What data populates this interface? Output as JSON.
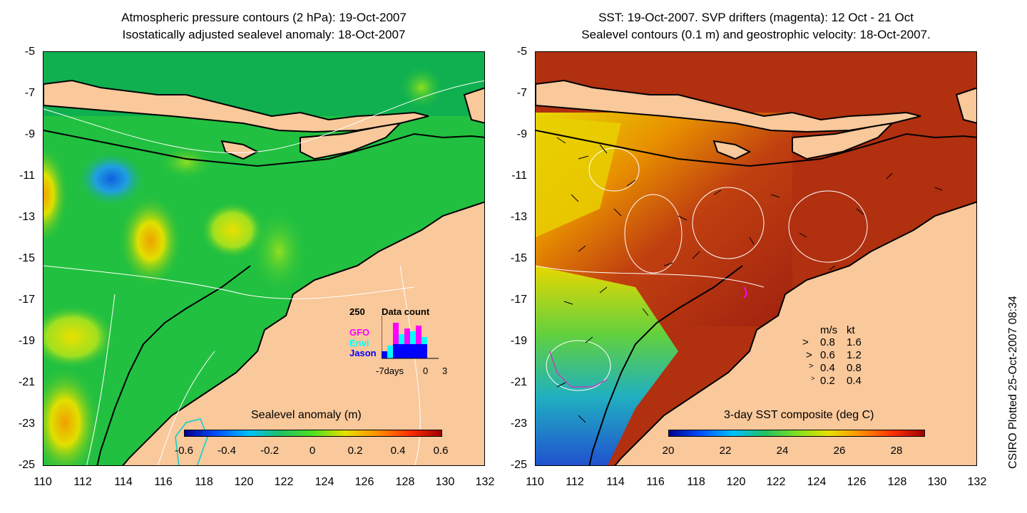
{
  "left_panel": {
    "title_line1": "Atmospheric pressure contours (2 hPa): 19-Oct-2007",
    "title_line2": "Isostatically adjusted sealevel anomaly: 18-Oct-2007",
    "colorbar_label": "Sealevel anomaly (m)",
    "colorbar_ticks": [
      "-0.6",
      "-0.4",
      "-0.2",
      "0",
      "0.2",
      "0.4",
      "0.6"
    ],
    "inset": {
      "max_label": "250",
      "title": "Data count",
      "legend": [
        {
          "name": "GFO",
          "color": "#ff00ff"
        },
        {
          "name": "Envi",
          "color": "#00ffff"
        },
        {
          "name": "Jason",
          "color": "#0000ff"
        }
      ],
      "x_labels": [
        "-7days",
        "0",
        "3"
      ]
    }
  },
  "right_panel": {
    "title_line1": "SST: 19-Oct-2007. SVP drifters (magenta): 12 Oct - 21 Oct",
    "title_line2": "Sealevel contours (0.1 m) and geostrophic velocity: 18-Oct-2007.",
    "colorbar_label": "3-day SST composite (deg C)",
    "colorbar_ticks": [
      "20",
      "22",
      "24",
      "26",
      "28"
    ],
    "velocity_key": {
      "header_ms": "m/s",
      "header_kt": "kt",
      "rows": [
        {
          "ms": "0.8",
          "kt": "1.6"
        },
        {
          "ms": "0.6",
          "kt": "1.2"
        },
        {
          "ms": "0.4",
          "kt": "0.8"
        },
        {
          "ms": "0.2",
          "kt": "0.4"
        }
      ]
    }
  },
  "axes": {
    "y_ticks": [
      "-5",
      "-7",
      "-9",
      "-11",
      "-13",
      "-15",
      "-17",
      "-19",
      "-21",
      "-23",
      "-25"
    ],
    "x_ticks": [
      "110",
      "112",
      "114",
      "116",
      "118",
      "120",
      "122",
      "124",
      "126",
      "128",
      "130",
      "132"
    ]
  },
  "side_caption": "CSIRO Plotted 25-Oct-2007 08:34",
  "colors": {
    "land": "#f9c89b",
    "ocean_left": "#22c040",
    "ocean_right_warm": "#b03010",
    "sst_yellow": "#e8d800",
    "sst_blue": "#3090e0"
  }
}
